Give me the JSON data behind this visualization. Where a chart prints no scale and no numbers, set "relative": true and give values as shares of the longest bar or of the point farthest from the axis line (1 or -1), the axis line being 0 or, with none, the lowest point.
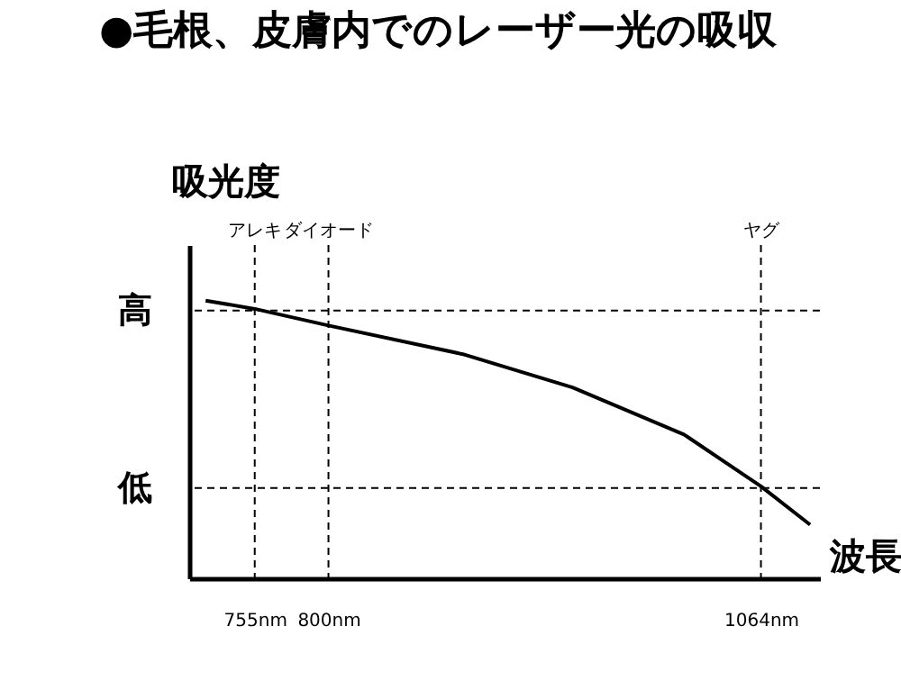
{
  "chart_data": {
    "type": "line",
    "title": "●毛根、皮膚内でのレーザー光の吸収",
    "xlabel": "波長",
    "ylabel": "吸光度",
    "relative": true,
    "grid": false,
    "marker": "none",
    "line_style": "solid",
    "x": [
      725,
      755,
      800,
      882,
      949,
      1017,
      1064,
      1094
    ],
    "series": [
      {
        "color": "#000000",
        "values": [
          1,
          0.97,
          0.91,
          0.807,
          0.687,
          0.518,
          0.331,
          0.193
        ]
      }
    ],
    "xlim": [
      715,
      1100
    ],
    "xticks": [
      {
        "value": 755,
        "label": "755nm"
      },
      {
        "value": 800,
        "label": "800nm"
      },
      {
        "value": 1064,
        "label": "1064nm"
      }
    ],
    "ref_lines": [
      {
        "axis": "y",
        "value": 0.964,
        "label": "高",
        "line_style": "dashed",
        "color": "#000000"
      },
      {
        "axis": "y",
        "value": 0.325,
        "label": "低",
        "line_style": "dashed",
        "color": "#000000"
      },
      {
        "axis": "x",
        "value": 755,
        "label": "アレキ",
        "line_style": "dashed",
        "color": "#000000"
      },
      {
        "axis": "x",
        "value": 800,
        "label": "ダイオード",
        "line_style": "dashed",
        "color": "#000000"
      },
      {
        "axis": "x",
        "value": 1064,
        "label": "ヤグ",
        "line_style": "dashed",
        "color": "#000000"
      }
    ]
  }
}
